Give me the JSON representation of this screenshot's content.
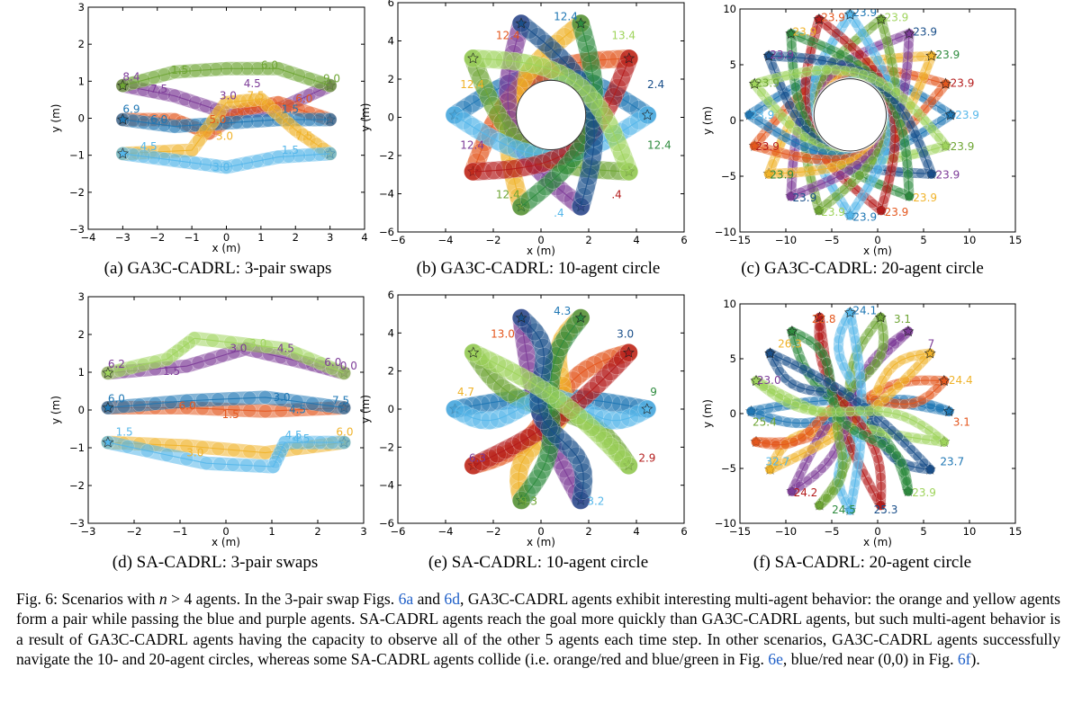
{
  "colors": {
    "blue": "#1f77b4",
    "orange": "#e4571e",
    "yellow": "#f0b32a",
    "purple": "#7d3c98",
    "green": "#6ea534",
    "lightblue": "#55b7ea",
    "red": "#b41c1c",
    "darkgreen": "#2e8b3e",
    "darkblue": "#1a4f8a",
    "lightgreen": "#9fd45c"
  },
  "panels": [
    {
      "id": "a",
      "subcaption": "(a) GA3C-CADRL: 3-pair swaps",
      "xlabel": "x (m)",
      "ylabel": "y (m)",
      "xticks": [
        "−4",
        "−3",
        "−2",
        "−1",
        "0",
        "1",
        "2",
        "3",
        "4"
      ],
      "yticks": [
        "−3",
        "−2",
        "−1",
        "0",
        "1",
        "2",
        "3"
      ],
      "annotations": [
        "8.4",
        "7.5",
        "6.9",
        "6.0",
        "5.0",
        "3.0",
        "1.5",
        "6.0",
        "4.5",
        "7.5",
        "3.0",
        "1.5",
        "9.0",
        "1.5",
        "3.0",
        "4.5",
        "6.0",
        "7.5"
      ]
    },
    {
      "id": "b",
      "subcaption": "(b) GA3C-CADRL: 10-agent circle",
      "xlabel": "x (m)",
      "ylabel": "y (m)",
      "xticks": [
        "−6",
        "−4",
        "−2",
        "0",
        "2",
        "4",
        "6"
      ],
      "yticks": [
        "−6",
        "−4",
        "−2",
        "0",
        "2",
        "4",
        "6"
      ],
      "annotations": [
        "12.4",
        "12.4",
        "12.4",
        "12.4",
        "12.4",
        ".4",
        ".4",
        "12.4",
        "2.4",
        "13.4"
      ]
    },
    {
      "id": "c",
      "subcaption": "(c) GA3C-CADRL: 20-agent circle",
      "xlabel": "x (m)",
      "ylabel": "y (m)",
      "xticks": [
        "−15",
        "−10",
        "−5",
        "0",
        "5",
        "10",
        "15"
      ],
      "yticks": [
        "−10",
        "−5",
        "0",
        "5",
        "10"
      ],
      "annotations": [
        "23.9",
        "23.9",
        "23.9",
        "23.9",
        "23.9",
        "23.9",
        "23.9",
        "23.9",
        "23.9",
        "23.9",
        "23.9",
        "23.9",
        "23.9",
        "23.9",
        "23.9",
        "23.9",
        "23.9",
        "23.9",
        "23.9",
        "23.9"
      ]
    },
    {
      "id": "d",
      "subcaption": "(d) SA-CADRL: 3-pair swaps",
      "xlabel": "x (m)",
      "ylabel": "y (m)",
      "xticks": [
        "−3",
        "−2",
        "−1",
        "0",
        "1",
        "2",
        "3"
      ],
      "yticks": [
        "−3",
        "−2",
        "−1",
        "0",
        "1",
        "2",
        "3"
      ],
      "annotations": [
        "6.2",
        "6.0",
        "1.5",
        "3.0",
        "4.5",
        "6.0",
        "7.5",
        "3.0",
        "4.5",
        "6.0",
        "1.5",
        "3.0",
        "4.5",
        "1.5",
        "3.0",
        "4.5",
        "6.0",
        "0.0"
      ]
    },
    {
      "id": "e",
      "subcaption": "(e) SA-CADRL: 10-agent circle",
      "xlabel": "x (m)",
      "ylabel": "y (m)",
      "xticks": [
        "−6",
        "−4",
        "−2",
        "0",
        "2",
        "4",
        "6"
      ],
      "yticks": [
        "−6",
        "−4",
        "−2",
        "0",
        "2",
        "4",
        "6"
      ],
      "annotations": [
        "4.3",
        "13.0",
        "4.7",
        "6.3",
        "9.3",
        "3.2",
        "2.9",
        "9",
        "3.0"
      ]
    },
    {
      "id": "f",
      "subcaption": "(f) SA-CADRL: 20-agent circle",
      "xlabel": "x (m)",
      "ylabel": "y (m)",
      "xticks": [
        "−15",
        "−10",
        "−5",
        "0",
        "5",
        "10",
        "15"
      ],
      "yticks": [
        "−10",
        "−5",
        "0",
        "5",
        "10"
      ],
      "annotations": [
        "24.1",
        "22.8",
        "26.3",
        "23.0",
        "25.4",
        "32.7",
        "24.2",
        "24.5",
        "25.3",
        "23.9",
        "23.7",
        "3.1",
        "24.4",
        "7",
        "3.1"
      ]
    }
  ],
  "caption": {
    "segments": [
      {
        "text": "Fig. 6: Scenarios with "
      },
      {
        "text": "n",
        "italic": true
      },
      {
        "text": " > 4 agents. In the 3-pair swap Figs. "
      },
      {
        "text": "6a",
        "ref": true
      },
      {
        "text": " and "
      },
      {
        "text": "6d",
        "ref": true
      },
      {
        "text": ", GA3C-CADRL agents exhibit interesting multi-agent behavior: the orange and yellow agents form a pair while passing the blue and purple agents. SA-CADRL agents reach the goal more quickly than GA3C-CADRL agents, but such multi-agent behavior is a result of GA3C-CADRL agents having the capacity to observe all of the other 5 agents each time step. In other scenarios, GA3C-CADRL agents successfully navigate the 10- and 20-agent circles, whereas some SA-CADRL agents collide (i.e. orange/red and blue/green in Fig. "
      },
      {
        "text": "6e",
        "ref": true
      },
      {
        "text": ", blue/red near (0,0) in Fig. "
      },
      {
        "text": "6f",
        "ref": true
      },
      {
        "text": ")."
      }
    ]
  }
}
